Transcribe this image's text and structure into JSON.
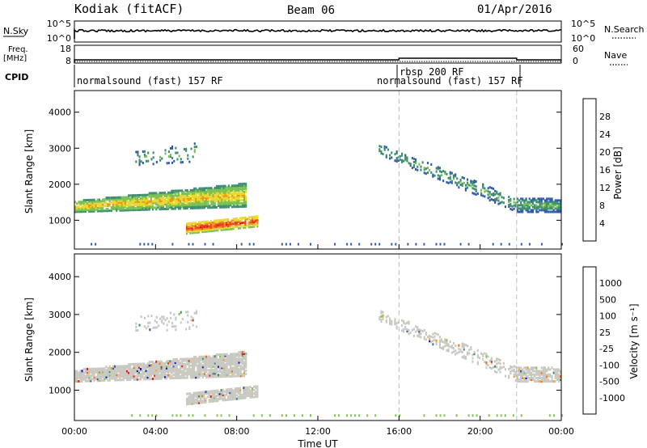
{
  "header": {
    "station": "Kodiak (fitACF)",
    "beam": "Beam 06",
    "date": "01/Apr/2016"
  },
  "summary_panels": {
    "sky_label": "N.Sky",
    "search_label": "N.Search",
    "sky_ticks": [
      "10^5",
      "10^0"
    ],
    "search_ticks": [
      "10^5",
      "10^0"
    ],
    "freq_label_1": "Freq.",
    "freq_label_2": "[MHz]",
    "freq_ticks": [
      "18",
      "8"
    ],
    "nave_label": "Nave",
    "nave_ticks": [
      "60",
      "0"
    ],
    "cpid_label": "CPID",
    "cpid_segments": [
      {
        "label": "normalsound (fast) 157 RF",
        "start_hour": 0
      },
      {
        "label": "rbsp 200 RF",
        "start_hour": 16
      },
      {
        "label": "normalsound (fast) 157 RF",
        "start_hour": 21.8
      }
    ]
  },
  "chart_data": [
    {
      "type": "heatmap",
      "name": "Power",
      "ylabel": "Slant Range [km]",
      "ylim": [
        200,
        4600
      ],
      "yticks": [
        "4000",
        "3000",
        "2000",
        "1000"
      ],
      "colorbar_label": "Power [dB]",
      "colorbar_ticks": [
        "28",
        "24",
        "20",
        "16",
        "12",
        "8",
        "4"
      ],
      "colors": [
        "#1a1af0",
        "#2e5aa8",
        "#3c8c6e",
        "#78c050",
        "#e8d828",
        "#f09018",
        "#e84018",
        "#e01010"
      ],
      "vlines_hours": [
        16,
        21.8
      ]
    },
    {
      "type": "heatmap",
      "name": "Velocity",
      "ylabel": "Slant Range [km]",
      "xlabel": "Time UT",
      "ylim": [
        200,
        4600
      ],
      "yticks": [
        "4000",
        "3000",
        "2000",
        "1000"
      ],
      "colorbar_label": "Velocity [m s⁻¹]",
      "colorbar_ticks": [
        "1000",
        "500",
        "100",
        "25",
        "-25",
        "-100",
        "-500",
        "-1000"
      ],
      "colors": [
        "#1010d0",
        "#2e5aa8",
        "#3c8c6e",
        "#78c850",
        "#c8c8c0",
        "#c8c8c0",
        "#f0a020",
        "#f07010",
        "#e02010"
      ],
      "vlines_hours": [
        16,
        21.8
      ]
    }
  ],
  "xaxis": {
    "label": "Time UT",
    "range_hours": [
      0,
      24
    ],
    "ticks": [
      "00:00",
      "04:00",
      "08:00",
      "12:00",
      "16:00",
      "20:00",
      "00:00"
    ]
  }
}
